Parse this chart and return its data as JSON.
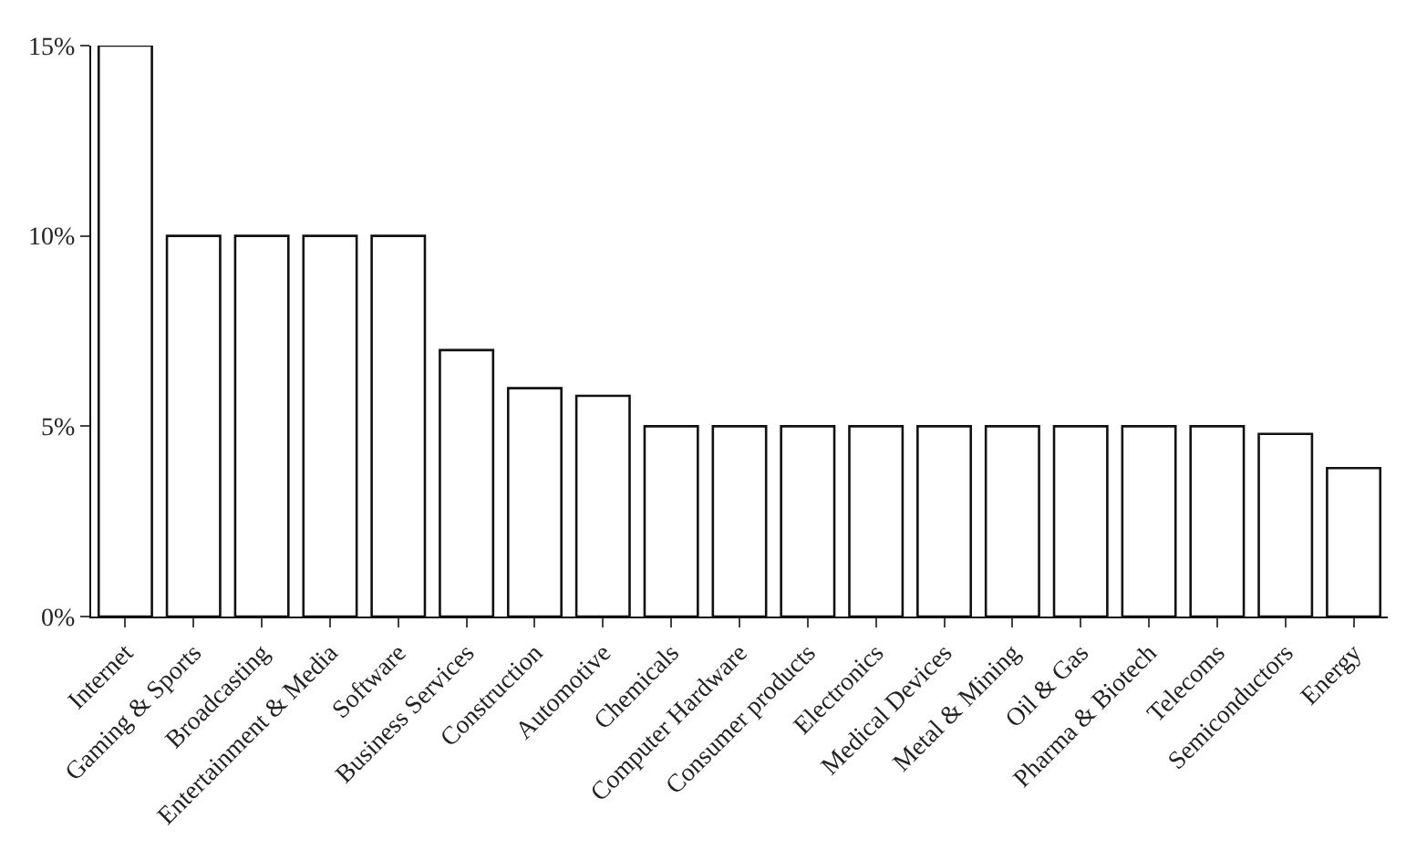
{
  "chart_data": {
    "type": "bar",
    "categories": [
      "Internet",
      "Gaming & Sports",
      "Broadcasting",
      "Entertainment & Media",
      "Software",
      "Business Services",
      "Construction",
      "Automotive",
      "Chemicals",
      "Computer Hardware",
      "Consumer products",
      "Electronics",
      "Medical Devices",
      "Metal & Mining",
      "Oil & Gas",
      "Pharma & Biotech",
      "Telecoms",
      "Semiconductors",
      "Energy"
    ],
    "values": [
      15,
      10,
      10,
      10,
      10,
      7,
      6,
      5.8,
      5,
      5,
      5,
      5,
      5,
      5,
      5,
      5,
      5,
      4.8,
      3.9
    ],
    "color": "#ffffff",
    "ylim": [
      0,
      15
    ],
    "yticks": [
      {
        "value": 0,
        "label": "0%"
      },
      {
        "value": 5,
        "label": "5%"
      },
      {
        "value": 10,
        "label": "10%"
      },
      {
        "value": 15,
        "label": "15%"
      }
    ]
  }
}
